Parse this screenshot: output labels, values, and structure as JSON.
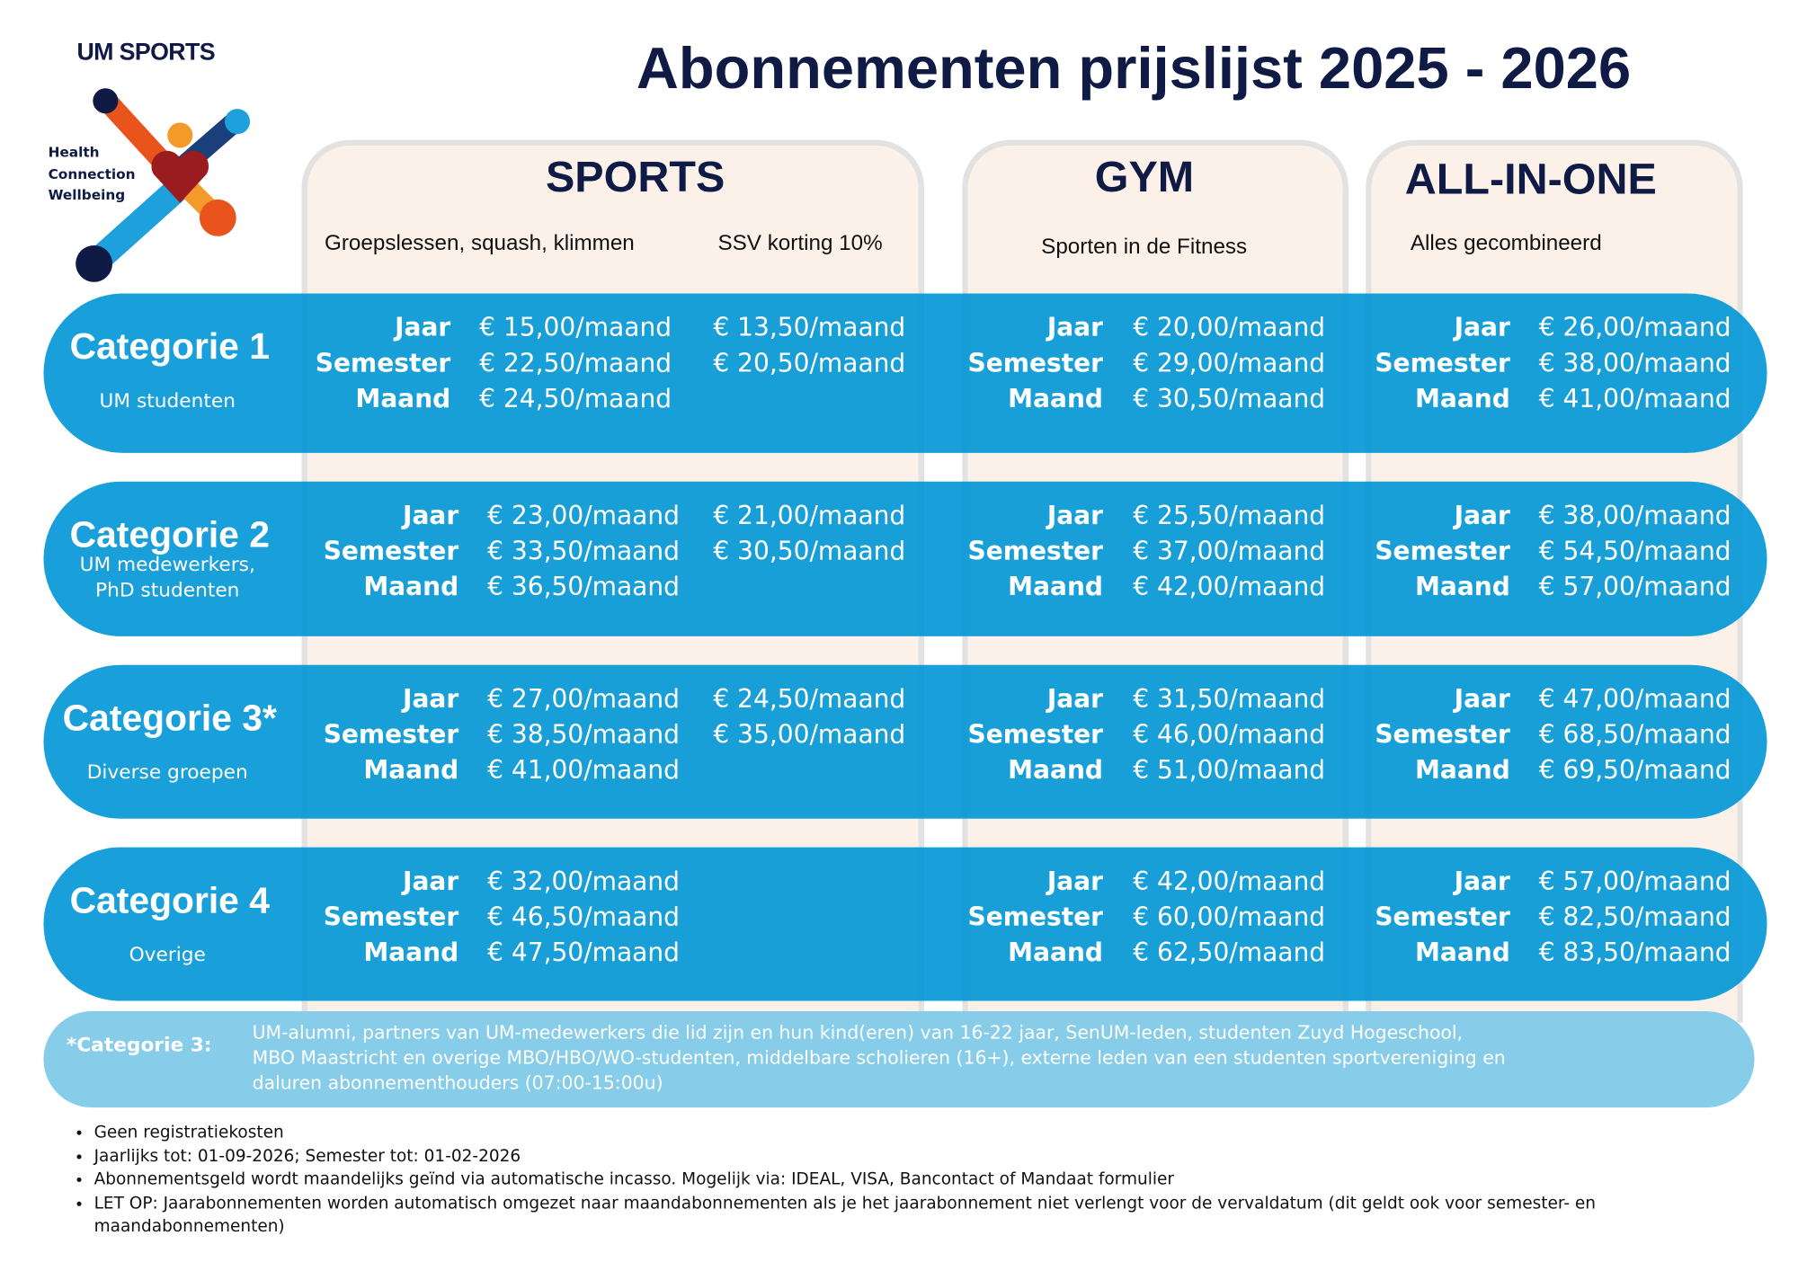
{
  "header": {
    "brand": "UM SPORTS",
    "tagline": [
      "Health",
      "Connection",
      "Wellbeing"
    ],
    "title": "Abonnementen prijslijst 2025 - 2026"
  },
  "columns": [
    {
      "title": "SPORTS",
      "subtitle": "Groepslessen, squash, klimmen",
      "extra": "SSV korting 10%"
    },
    {
      "title": "GYM",
      "subtitle": "Sporten in de Fitness"
    },
    {
      "title": "ALL-IN-ONE",
      "subtitle": "Alles gecombineerd"
    }
  ],
  "period_labels": [
    "Jaar",
    "Semester",
    "Maand"
  ],
  "categories": [
    {
      "name": "Categorie 1",
      "description": [
        "UM studenten"
      ],
      "sports": [
        "€ 15,00/maand",
        "€ 22,50/maand",
        "€ 24,50/maand"
      ],
      "ssv": [
        "€ 13,50/maand",
        "€ 20,50/maand"
      ],
      "gym": [
        "€ 20,00/maand",
        "€ 29,00/maand",
        "€ 30,50/maand"
      ],
      "all_in_one": [
        "€ 26,00/maand",
        "€ 38,00/maand",
        "€ 41,00/maand"
      ]
    },
    {
      "name": "Categorie 2",
      "description": [
        "UM medewerkers,",
        "PhD studenten"
      ],
      "sports": [
        "€ 23,00/maand",
        "€ 33,50/maand",
        "€ 36,50/maand"
      ],
      "ssv": [
        "€ 21,00/maand",
        "€ 30,50/maand"
      ],
      "gym": [
        "€ 25,50/maand",
        "€ 37,00/maand",
        "€ 42,00/maand"
      ],
      "all_in_one": [
        "€ 38,00/maand",
        "€ 54,50/maand",
        "€ 57,00/maand"
      ]
    },
    {
      "name": "Categorie 3*",
      "description": [
        "Diverse groepen"
      ],
      "sports": [
        "€ 27,00/maand",
        "€ 38,50/maand",
        "€ 41,00/maand"
      ],
      "ssv": [
        "€ 24,50/maand",
        "€ 35,00/maand"
      ],
      "gym": [
        "€ 31,50/maand",
        "€ 46,00/maand",
        "€ 51,00/maand"
      ],
      "all_in_one": [
        "€ 47,00/maand",
        "€ 68,50/maand",
        "€ 69,50/maand"
      ]
    },
    {
      "name": "Categorie 4",
      "description": [
        "Overige"
      ],
      "sports": [
        "€ 32,00/maand",
        "€ 46,50/maand",
        "€ 47,50/maand"
      ],
      "ssv": [],
      "gym": [
        "€ 42,00/maand",
        "€ 60,00/maand",
        "€ 62,50/maand"
      ],
      "all_in_one": [
        "€ 57,00/maand",
        "€ 82,50/maand",
        "€ 83,50/maand"
      ]
    }
  ],
  "note": {
    "label": "*Categorie 3:",
    "lines": [
      "UM-alumni, partners van UM-medewerkers die lid zijn en hun kind(eren) van 16-22 jaar, SenUM-leden, studenten Zuyd Hogeschool,",
      "MBO Maastricht en overige MBO/HBO/WO-studenten, middelbare scholieren (16+), externe leden van een studenten sportvereniging en",
      "daluren abonnementhouders (07:00-15:00u)"
    ]
  },
  "bullets": [
    "Geen registratiekosten",
    "Jaarlijks tot: 01-09-2026; Semester tot: 01-02-2026",
    "Abonnementsgeld wordt maandelijks geïnd via automatische incasso. Mogelijk via: IDEAL, VISA, Bancontact of Mandaat formulier",
    "LET OP: Jaarabonnementen worden automatisch omgezet naar maandabonnementen als je het jaarabonnement niet verlengt voor de vervaldatum (dit geldt ook voor semester- en maandabonnementen)"
  ]
}
